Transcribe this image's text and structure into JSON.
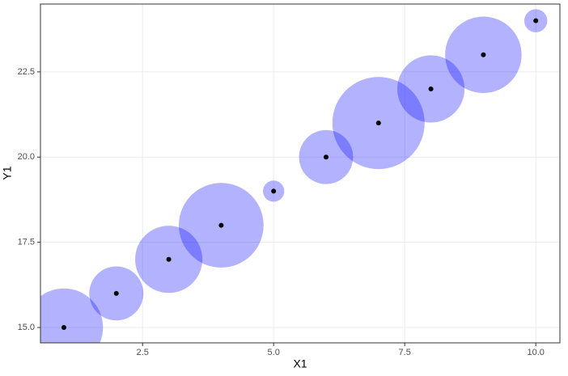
{
  "chart_data": {
    "type": "scatter",
    "x_label": "X1",
    "y_label": "Y1",
    "x": [
      1,
      2,
      3,
      4,
      5,
      6,
      7,
      8,
      9,
      10
    ],
    "series": [
      {
        "color": "#0000ff",
        "point_color": "#000000",
        "values": [
          15,
          16,
          17,
          18,
          19,
          20,
          21,
          22,
          23,
          24
        ],
        "sizes": [
          23,
          11,
          17,
          27,
          1.7,
          11,
          32,
          17,
          22,
          2
        ]
      }
    ],
    "xlim": [
      0.553,
      10.46
    ],
    "xticks": [
      2.5,
      {
        "value": 5,
        "label": "5.0"
      },
      7.5,
      {
        "value": 10,
        "label": "10.0"
      }
    ],
    "ylim": [
      14.55,
      24.49
    ],
    "yticks": [
      {
        "value": 15,
        "label": "15.0"
      },
      17.5,
      {
        "value": 20,
        "label": "20.0"
      },
      22.5
    ],
    "grid": true
  }
}
